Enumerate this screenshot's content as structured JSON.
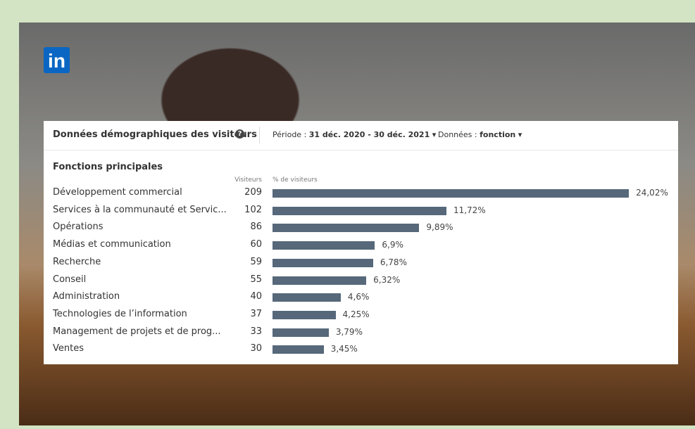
{
  "logo": "in",
  "panel": {
    "title": "Données démographiques des visiteurs",
    "help_icon": "?",
    "period_label": "Période :",
    "period_value": "31 déc. 2020 - 30 déc. 2021",
    "data_label": "Données :",
    "data_value": "fonction",
    "section_title": "Fonctions principales",
    "columns": {
      "visitors": "Visiteurs",
      "percent": "% de visiteurs"
    },
    "rows": [
      {
        "label": "Développement commercial",
        "visitors": 209,
        "percent": 24.02,
        "percent_label": "24,02%"
      },
      {
        "label": "Services à la communauté et Servic...",
        "visitors": 102,
        "percent": 11.72,
        "percent_label": "11,72%"
      },
      {
        "label": "Opérations",
        "visitors": 86,
        "percent": 9.89,
        "percent_label": "9,89%"
      },
      {
        "label": "Médias et communication",
        "visitors": 60,
        "percent": 6.9,
        "percent_label": "6,9%"
      },
      {
        "label": "Recherche",
        "visitors": 59,
        "percent": 6.78,
        "percent_label": "6,78%"
      },
      {
        "label": "Conseil",
        "visitors": 55,
        "percent": 6.32,
        "percent_label": "6,32%"
      },
      {
        "label": "Administration",
        "visitors": 40,
        "percent": 4.6,
        "percent_label": "4,6%"
      },
      {
        "label": "Technologies de l’information",
        "visitors": 37,
        "percent": 4.25,
        "percent_label": "4,25%"
      },
      {
        "label": "Management de projets et de prog...",
        "visitors": 33,
        "percent": 3.79,
        "percent_label": "3,79%"
      },
      {
        "label": "Ventes",
        "visitors": 30,
        "percent": 3.45,
        "percent_label": "3,45%"
      }
    ],
    "bar_color": "#56687a"
  }
}
